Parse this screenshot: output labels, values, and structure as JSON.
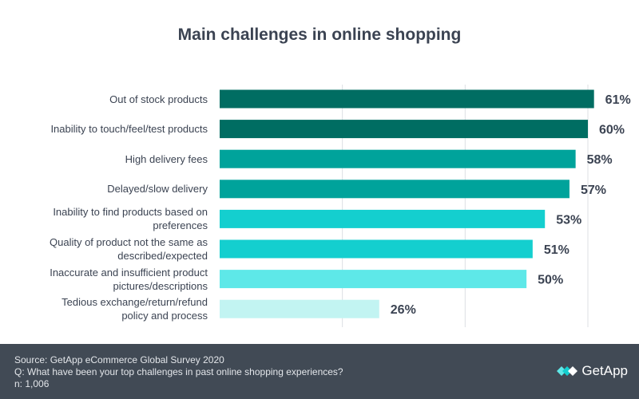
{
  "chart_data": {
    "type": "bar",
    "orientation": "horizontal",
    "title": "Main challenges in online shopping",
    "categories": [
      "Out of stock products",
      "Inability to touch/feel/test products",
      "High delivery fees",
      "Delayed/slow delivery",
      "Inability to find products based on preferences",
      "Quality of product not the same as described/expected",
      "Inaccurate and insufficient product pictures/descriptions",
      "Tedious exchange/return/refund policy and process"
    ],
    "label_lines": [
      [
        "Out of stock products"
      ],
      [
        "Inability to touch/feel/test products"
      ],
      [
        "High delivery fees"
      ],
      [
        "Delayed/slow delivery"
      ],
      [
        "Inability to find products based on",
        "preferences"
      ],
      [
        "Quality of product not the same as",
        "described/expected"
      ],
      [
        "Inaccurate and insufficient product",
        "pictures/descriptions"
      ],
      [
        "Tedious exchange/return/refund",
        "policy and process"
      ]
    ],
    "values": [
      61,
      60,
      58,
      57,
      53,
      51,
      50,
      26
    ],
    "value_labels": [
      "61%",
      "60%",
      "58%",
      "57%",
      "53%",
      "51%",
      "50%",
      "26%"
    ],
    "colors": [
      "#006d62",
      "#006d62",
      "#00a39b",
      "#00a39b",
      "#14cfcf",
      "#14cfcf",
      "#5ee8e8",
      "#c2f4f2"
    ],
    "xlim": [
      0,
      60
    ],
    "gridlines": [
      20,
      40,
      60
    ],
    "xlabel": "",
    "ylabel": ""
  },
  "footer": {
    "source": "Source: GetApp eCommerce Global Survey 2020",
    "question": "Q: What have been your top challenges in past online shopping experiences?",
    "n": "n: 1,006",
    "logo_text": "GetApp"
  }
}
